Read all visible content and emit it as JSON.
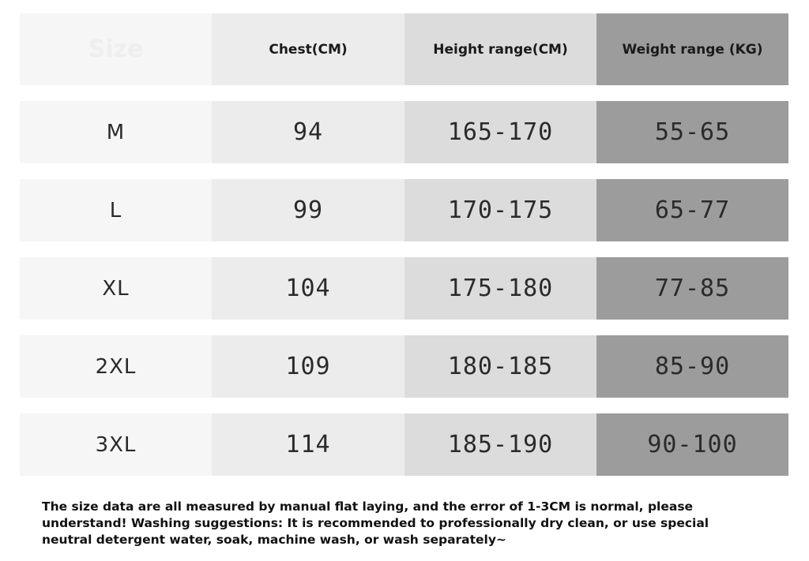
{
  "header": {
    "size_label": "Size",
    "chest_label": "Chest(CM)",
    "height_label": "Height range(CM)",
    "weight_label": "Weight range (KG)"
  },
  "rows": [
    {
      "size": "M",
      "chest": "94",
      "height": "165-170",
      "weight": "55-65"
    },
    {
      "size": "L",
      "chest": "99",
      "height": "170-175",
      "weight": "65-77"
    },
    {
      "size": "XL",
      "chest": "104",
      "height": "175-180",
      "weight": "77-85"
    },
    {
      "size": "2XL",
      "chest": "109",
      "height": "180-185",
      "weight": "85-90"
    },
    {
      "size": "3XL",
      "chest": "114",
      "height": "185-190",
      "weight": "90-100"
    }
  ],
  "note": "The size data are all measured by manual flat laying, and the error of 1-3CM is normal, please understand! Washing suggestions: It is recommended to professionally dry clean, or use special neutral detergent water, soak, machine wash, or wash separately~",
  "colors": {
    "col_size": "#f6f6f6",
    "col_chest": "#ececec",
    "col_height": "#dcdcdc",
    "col_weight": "#9c9c9c"
  }
}
